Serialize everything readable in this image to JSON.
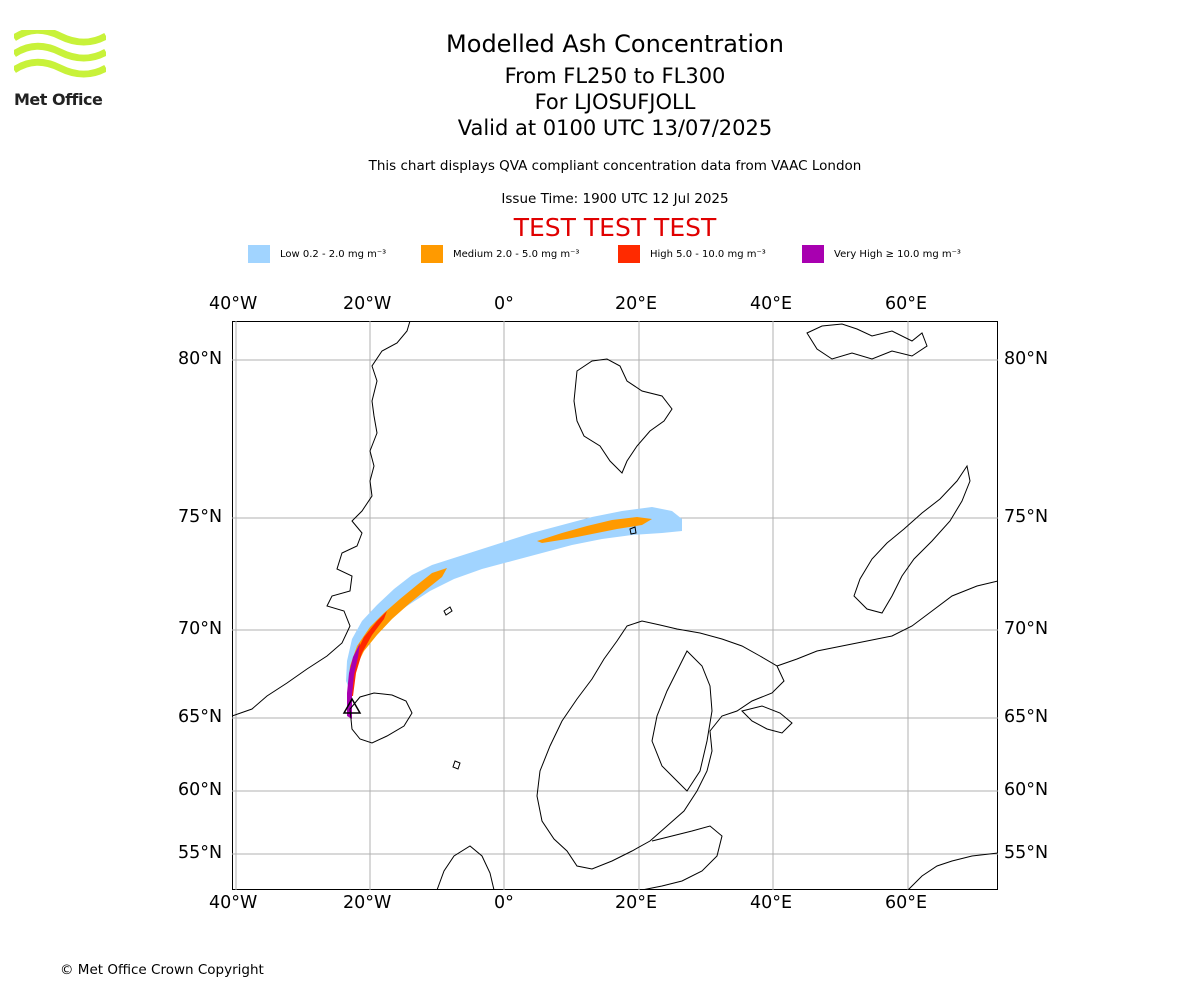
{
  "brand": {
    "logo_text": "Met Office",
    "logo_color": "#c8f23a"
  },
  "header": {
    "title": "Modelled Ash Concentration",
    "subtitle_1": "From FL250 to FL300",
    "subtitle_2": "For LJOSUFJOLL",
    "subtitle_3": "Valid at 0100 UTC 13/07/2025",
    "description": "This chart displays QVA compliant concentration data from VAAC London",
    "issue_time": "Issue Time: 1900 UTC 12 Jul 2025",
    "test_banner": "TEST TEST TEST",
    "test_color": "#e00000"
  },
  "legend": [
    {
      "label": "Low 0.2 - 2.0 mg m⁻³",
      "color": "#a1d4ff"
    },
    {
      "label": "Medium 2.0 - 5.0 mg m⁻³",
      "color": "#ff9a00"
    },
    {
      "label": "High 5.0 - 10.0 mg m⁻³",
      "color": "#ff2a00"
    },
    {
      "label": "Very High ≥ 10.0 mg m⁻³",
      "color": "#a800b0"
    }
  ],
  "map": {
    "lon_ticks": [
      "40°W",
      "20°W",
      "0°",
      "20°E",
      "40°E",
      "60°E"
    ],
    "lat_ticks": [
      "80°N",
      "75°N",
      "70°N",
      "65°N",
      "60°N",
      "55°N"
    ],
    "volcano_marker": "triangle",
    "grid_color": "#b0b0b0",
    "coast_color": "#000000"
  },
  "footer": {
    "copyright": "© Met Office Crown Copyright"
  }
}
